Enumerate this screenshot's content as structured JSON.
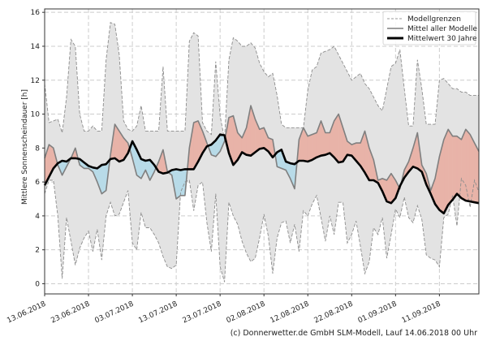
{
  "chart_data": {
    "type": "area",
    "ylabel": "Mittlere Sonnenscheindauer [h]",
    "xlabel": "",
    "ylim": [
      -0.6,
      16.2
    ],
    "x_days": 99,
    "grid": true,
    "legend_position": "top-right",
    "yticks": [
      0,
      2,
      4,
      6,
      8,
      10,
      12,
      14,
      16
    ],
    "xtick_labels": [
      "13.06.2018",
      "23.06.2018",
      "03.07.2018",
      "13.07.2018",
      "23.07.2018",
      "02.08.2018",
      "12.08.2018",
      "22.08.2018",
      "01.09.2018",
      "11.09.2018"
    ],
    "xtick_days": [
      0,
      10,
      20,
      30,
      40,
      50,
      60,
      70,
      80,
      90
    ],
    "colors": {
      "envelope_fill": "#e3e3e3",
      "envelope_line": "#8c8c8c",
      "above_fill": "#e8b3a8",
      "below_fill": "#b8dbe8",
      "model_mean": "#7f7f7f",
      "climate_mean": "#000000",
      "grid": "#cccccc"
    },
    "series": [
      {
        "name": "Modellgrenzen",
        "role": "upper",
        "values": [
          11.8,
          9.5,
          9.6,
          9.7,
          8.9,
          11.0,
          14.4,
          14.0,
          10.0,
          9.0,
          9.0,
          9.3,
          9.0,
          9.0,
          13.2,
          15.4,
          15.3,
          13.5,
          9.6,
          9.1,
          9.0,
          9.3,
          10.5,
          9.0,
          9.0,
          9.0,
          9.0,
          12.8,
          9.0,
          9.0,
          9.0,
          9.0,
          9.0,
          14.3,
          14.8,
          14.6,
          9.5,
          9.0,
          8.8,
          13.1,
          9.9,
          8.5,
          13.2,
          14.5,
          14.3,
          14.0,
          14.0,
          14.2,
          13.9,
          13.0,
          12.5,
          12.2,
          12.4,
          11.1,
          9.4,
          9.2,
          9.2,
          9.2,
          9.2,
          9.2,
          11.4,
          12.6,
          12.8,
          13.6,
          13.7,
          13.8,
          14.0,
          13.5,
          13.0,
          12.5,
          12.0,
          12.2,
          12.4,
          11.8,
          11.5,
          11.0,
          10.5,
          10.2,
          11.5,
          12.8,
          13.0,
          13.8,
          11.5,
          9.3,
          9.3,
          13.2,
          11.5,
          9.4,
          9.4,
          9.4,
          12.0,
          12.1,
          11.8,
          11.5,
          11.5,
          11.3,
          11.3,
          11.1,
          11.1,
          11.1
        ]
      },
      {
        "name": "Modellgrenzen",
        "role": "lower",
        "values": [
          5.3,
          6.1,
          6.1,
          4.0,
          0.3,
          3.9,
          2.5,
          1.1,
          2.1,
          2.7,
          3.1,
          1.9,
          3.2,
          1.4,
          4.0,
          4.8,
          4.0,
          4.1,
          4.8,
          5.5,
          2.4,
          2.0,
          4.2,
          3.3,
          3.3,
          2.9,
          2.4,
          1.6,
          1.0,
          0.9,
          1.1,
          5.4,
          6.0,
          6.1,
          4.3,
          5.8,
          6.0,
          3.6,
          1.9,
          5.3,
          1.0,
          0.1,
          4.8,
          4.0,
          3.5,
          2.5,
          1.8,
          1.3,
          1.5,
          2.7,
          4.1,
          2.8,
          0.6,
          2.7,
          3.6,
          3.7,
          2.4,
          3.5,
          1.9,
          4.3,
          4.0,
          4.7,
          5.2,
          3.9,
          2.5,
          4.0,
          2.9,
          4.8,
          4.8,
          2.4,
          2.9,
          3.7,
          2.2,
          0.6,
          1.3,
          3.3,
          2.9,
          3.9,
          1.5,
          2.9,
          4.4,
          3.9,
          5.1,
          3.9,
          3.6,
          4.6,
          3.8,
          1.7,
          1.5,
          1.4,
          1.0,
          3.9,
          4.1,
          5.2,
          3.4,
          6.2,
          5.8,
          4.5,
          6.1,
          5.4
        ]
      },
      {
        "name": "Mittel aller Modelle",
        "role": "model_mean",
        "values": [
          7.4,
          8.2,
          8.0,
          7.0,
          6.4,
          6.9,
          7.4,
          8.0,
          7.0,
          6.8,
          6.8,
          6.6,
          6.0,
          5.3,
          5.5,
          7.6,
          9.4,
          9.0,
          8.6,
          8.3,
          7.4,
          6.4,
          6.2,
          6.7,
          6.1,
          6.6,
          7.2,
          7.9,
          6.6,
          6.4,
          5.0,
          5.2,
          5.2,
          8.0,
          9.5,
          9.6,
          9.0,
          8.3,
          7.6,
          7.5,
          7.8,
          8.4,
          9.8,
          9.9,
          8.9,
          8.6,
          9.2,
          10.5,
          9.7,
          9.1,
          9.2,
          8.6,
          8.5,
          6.9,
          6.8,
          6.7,
          6.2,
          5.6,
          8.5,
          9.2,
          8.7,
          8.8,
          8.9,
          9.6,
          8.9,
          8.9,
          9.6,
          10.0,
          9.2,
          8.4,
          8.2,
          8.3,
          8.3,
          9.0,
          8.0,
          7.3,
          6.1,
          6.2,
          6.1,
          6.5,
          6.1,
          5.6,
          6.7,
          7.2,
          8.0,
          8.9,
          7.0,
          6.5,
          5.5,
          6.2,
          7.5,
          8.5,
          9.1,
          8.7,
          8.7,
          8.5,
          9.1,
          8.8,
          8.3,
          7.8
        ]
      },
      {
        "name": "Mittelwert 30 Jahre",
        "role": "climate_mean",
        "values": [
          5.8,
          6.3,
          6.8,
          7.1,
          7.25,
          7.2,
          7.4,
          7.4,
          7.35,
          7.15,
          6.95,
          6.85,
          6.8,
          7.0,
          7.05,
          7.35,
          7.4,
          7.2,
          7.3,
          7.7,
          8.4,
          7.9,
          7.35,
          7.25,
          7.3,
          7.0,
          6.6,
          6.5,
          6.55,
          6.7,
          6.75,
          6.7,
          6.75,
          6.75,
          6.75,
          7.2,
          7.7,
          8.1,
          8.2,
          8.45,
          8.8,
          8.75,
          7.7,
          7.0,
          7.3,
          7.75,
          7.6,
          7.55,
          7.75,
          7.95,
          8.0,
          7.8,
          7.45,
          7.75,
          7.9,
          7.2,
          7.1,
          7.05,
          7.25,
          7.25,
          7.2,
          7.3,
          7.45,
          7.55,
          7.6,
          7.7,
          7.45,
          7.15,
          7.2,
          7.6,
          7.55,
          7.25,
          6.95,
          6.55,
          6.1,
          6.1,
          5.95,
          5.45,
          4.85,
          4.75,
          5.05,
          5.75,
          6.25,
          6.6,
          6.9,
          6.8,
          6.6,
          5.85,
          5.3,
          4.7,
          4.35,
          4.15,
          4.65,
          4.95,
          5.3,
          5.05,
          4.9,
          4.85,
          4.8,
          4.75
        ]
      }
    ],
    "legend": [
      {
        "label": "Modellgrenzen",
        "style": "dashed"
      },
      {
        "label": "Mittel aller Modelle",
        "style": "gray-solid"
      },
      {
        "label": "Mittelwert 30 Jahre",
        "style": "black-thick"
      }
    ]
  },
  "credit": "(c) Donnerwetter.de GmbH SLM-Modell, Lauf 14.06.2018 00 Uhr"
}
